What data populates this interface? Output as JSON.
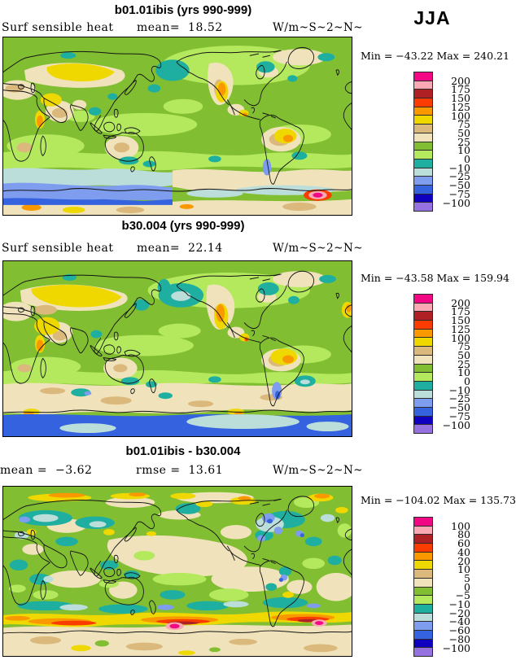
{
  "season": "JJA",
  "palette": [
    "#F20884",
    "#F9A8B4",
    "#AF2025",
    "#FA3C00",
    "#FA9800",
    "#EFD800",
    "#DBB87C",
    "#F0E3BC",
    "#82BE32",
    "#B4E95E",
    "#1FAFA0",
    "#BBDEDB",
    "#7E9DEE",
    "#3562DF",
    "#0F00C0",
    "#9672E0"
  ],
  "panels": [
    {
      "title": "b01.01ibis (yrs 990-999)",
      "left_label": "Surf sensible heat",
      "stat": "mean=  18.52",
      "units": "W/m~S~2~N~",
      "minmax": "Min = −43.22 Max = 240.21",
      "ticks": [
        "200",
        "175",
        "150",
        "125",
        "100",
        "75",
        "50",
        "25",
        "10",
        "0",
        "−10",
        "−25",
        "−50",
        "−75",
        "−100"
      ]
    },
    {
      "title": "b30.004 (yrs 990-999)",
      "left_label": "Surf sensible heat",
      "stat": "mean=  22.14",
      "units": "W/m~S~2~N~",
      "minmax": "Min = −43.58 Max = 159.94",
      "ticks": [
        "200",
        "175",
        "150",
        "125",
        "100",
        "75",
        "50",
        "25",
        "10",
        "0",
        "−10",
        "−25",
        "−50",
        "−75",
        "−100"
      ]
    },
    {
      "title": "b01.01ibis - b30.004",
      "left_label": "mean =  −3.62",
      "stat": "rmse =  13.61",
      "units": "W/m~S~2~N~",
      "minmax": "Min = −104.02 Max = 135.73",
      "ticks": [
        "100",
        "80",
        "60",
        "40",
        "20",
        "10",
        "5",
        "0",
        "−5",
        "−10",
        "−20",
        "−40",
        "−60",
        "−80",
        "−100"
      ]
    }
  ],
  "chart_data": [
    {
      "type": "heatmap",
      "subtype": "global-filled-contour-map",
      "title": "b01.01ibis (yrs 990-999)",
      "variable": "Surf sensible heat",
      "season": "JJA",
      "units": "W/m~S~2~N~",
      "mean": 18.52,
      "min": -43.22,
      "max": 240.21,
      "contour_levels": [
        -100,
        -75,
        -50,
        -25,
        -10,
        0,
        10,
        25,
        50,
        75,
        100,
        125,
        150,
        175,
        200
      ],
      "legend_position": "right"
    },
    {
      "type": "heatmap",
      "subtype": "global-filled-contour-map",
      "title": "b30.004 (yrs 990-999)",
      "variable": "Surf sensible heat",
      "season": "JJA",
      "units": "W/m~S~2~N~",
      "mean": 22.14,
      "min": -43.58,
      "max": 159.94,
      "contour_levels": [
        -100,
        -75,
        -50,
        -25,
        -10,
        0,
        10,
        25,
        50,
        75,
        100,
        125,
        150,
        175,
        200
      ],
      "legend_position": "right"
    },
    {
      "type": "heatmap",
      "subtype": "global-filled-contour-difference-map",
      "title": "b01.01ibis - b30.004",
      "variable": "Surf sensible heat",
      "season": "JJA",
      "units": "W/m~S~2~N~",
      "mean": -3.62,
      "rmse": 13.61,
      "min": -104.02,
      "max": 135.73,
      "contour_levels": [
        -100,
        -80,
        -60,
        -40,
        -20,
        -10,
        -5,
        0,
        5,
        10,
        20,
        40,
        60,
        80,
        100
      ],
      "legend_position": "right"
    }
  ]
}
